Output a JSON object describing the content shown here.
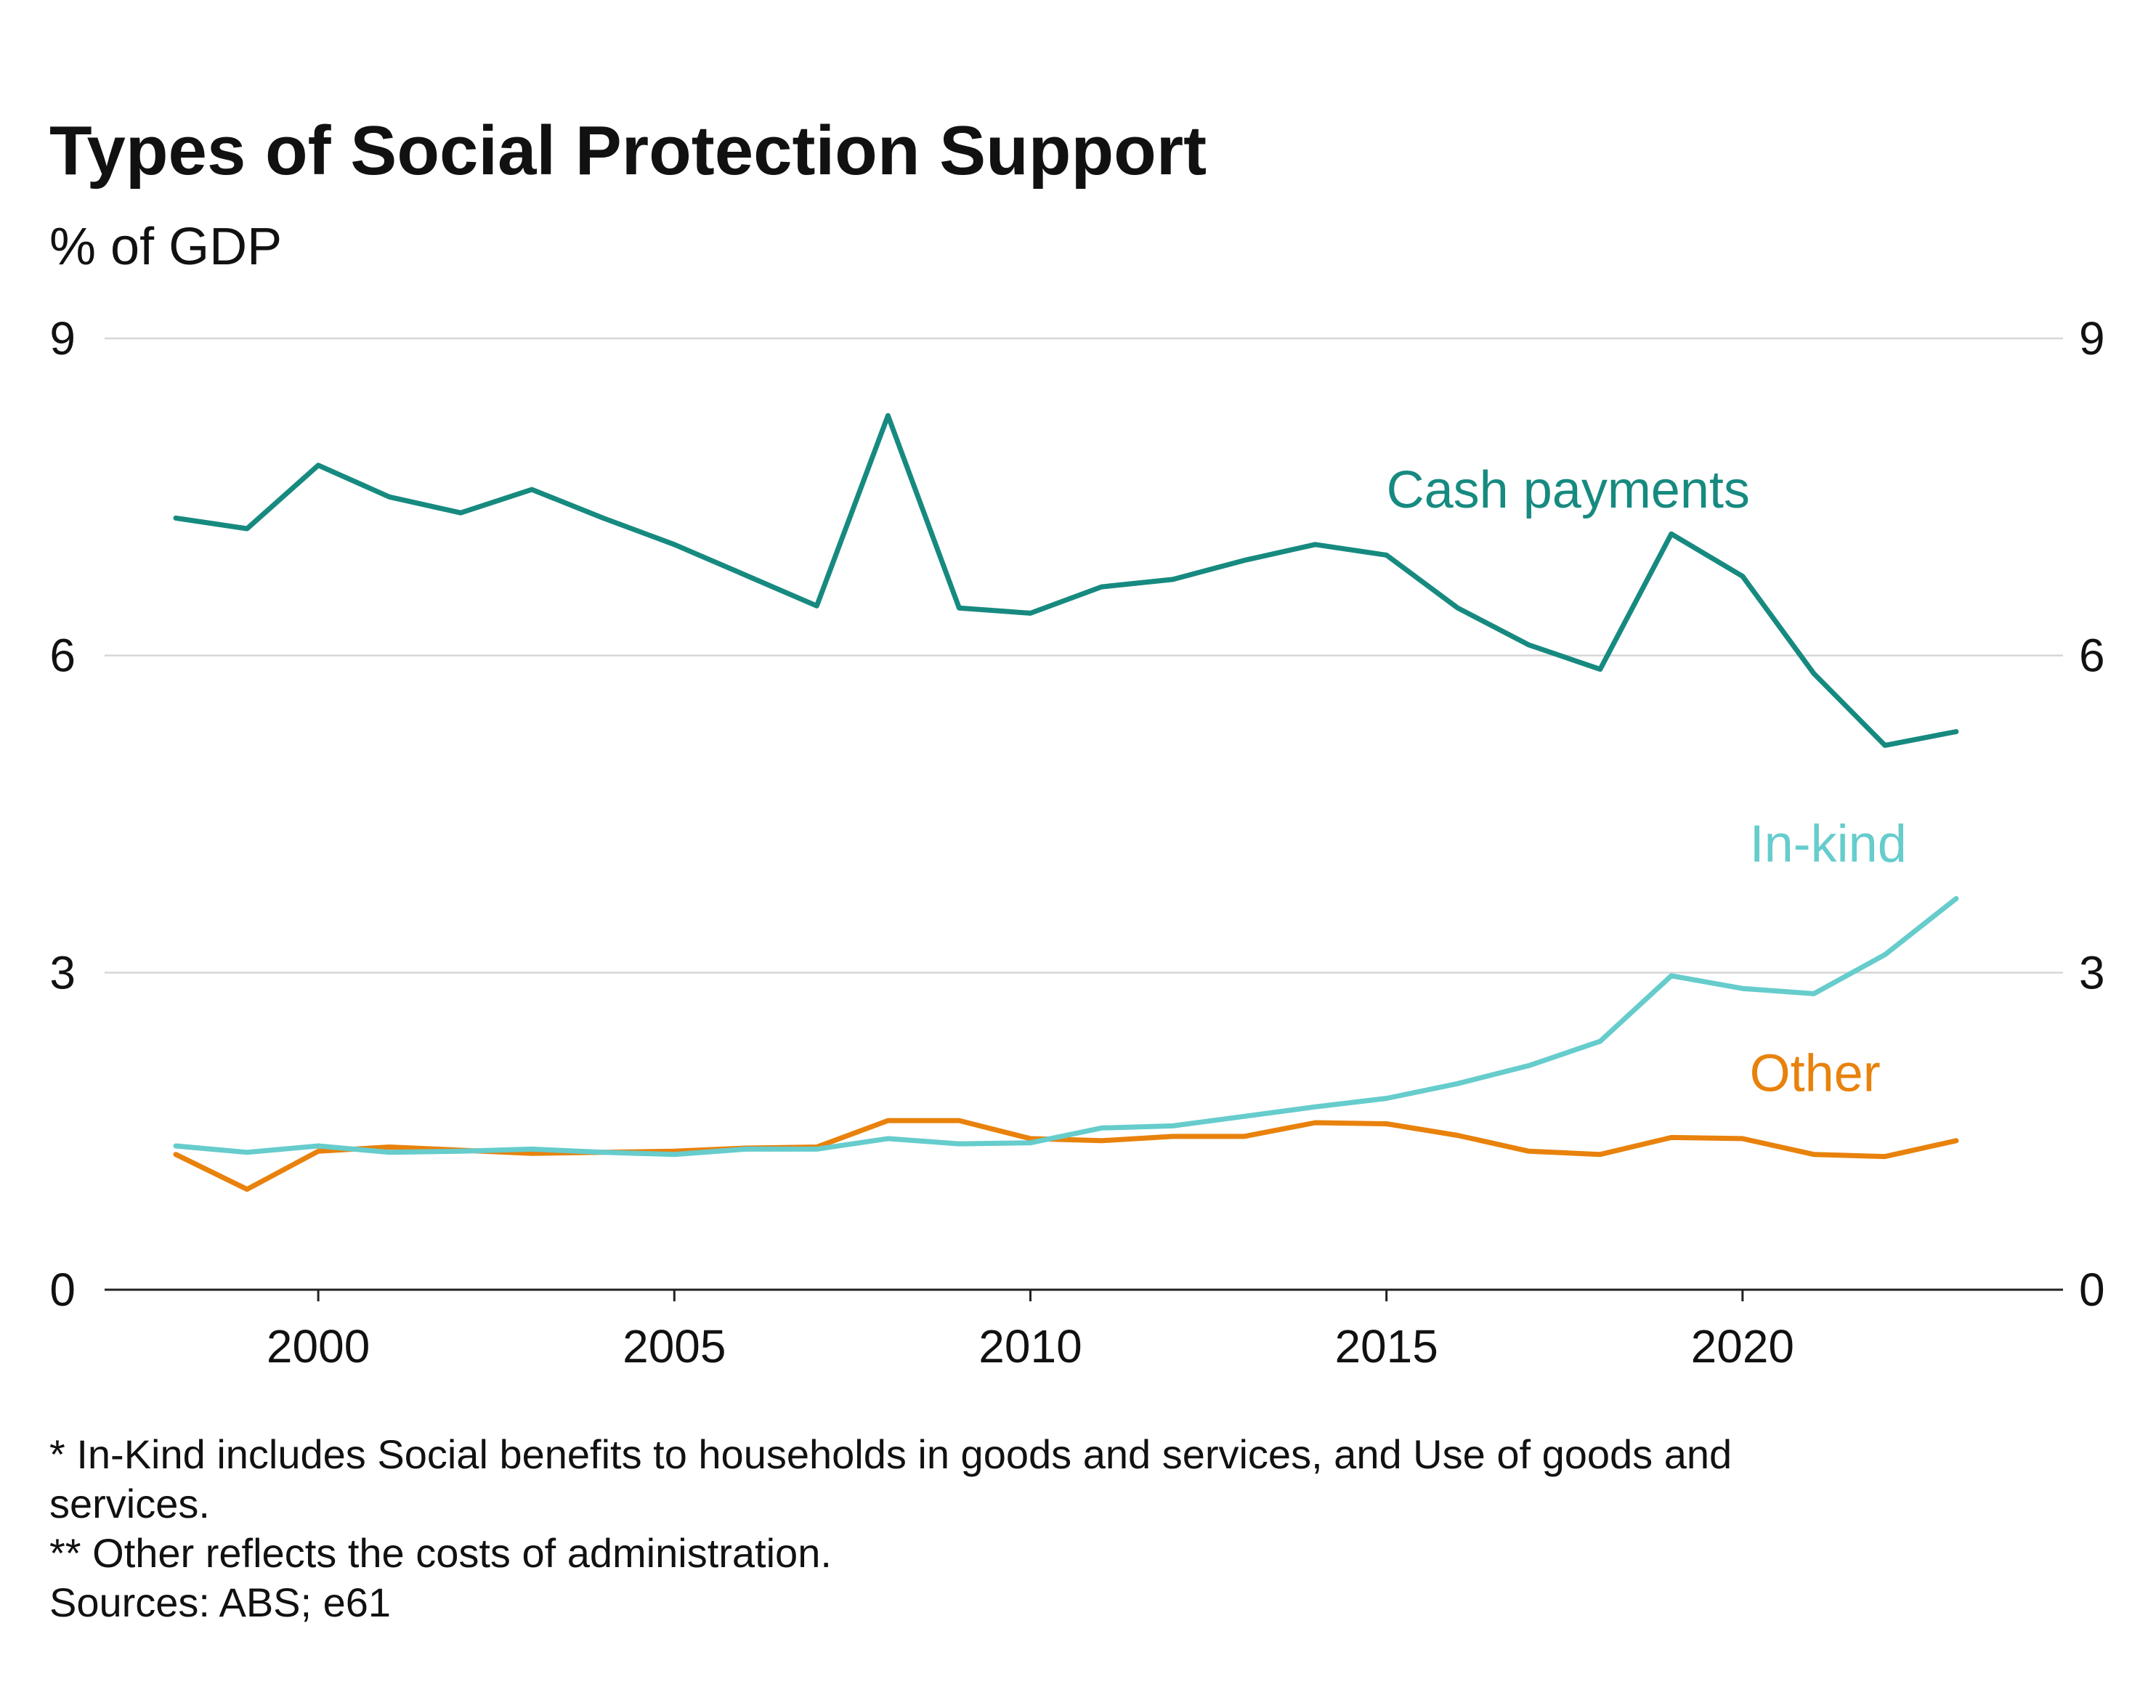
{
  "chart_data": {
    "type": "line",
    "title": "Types of Social Protection Support",
    "subtitle": "% of GDP",
    "xlabel": "",
    "ylabel": "",
    "xlim": [
      1997,
      2024.5
    ],
    "ylim": [
      0,
      9
    ],
    "y_ticks": [
      0,
      3,
      6,
      9
    ],
    "x_ticks": [
      2000,
      2005,
      2010,
      2015,
      2020
    ],
    "grid": true,
    "right_axis": true,
    "x": [
      1998,
      1999,
      2000,
      2001,
      2002,
      2003,
      2004,
      2005,
      2006,
      2007,
      2008,
      2009,
      2010,
      2011,
      2012,
      2013,
      2014,
      2015,
      2016,
      2017,
      2018,
      2019,
      2020,
      2021,
      2022,
      2023
    ],
    "series": [
      {
        "name": "Cash payments",
        "color": "#178a80",
        "values": [
          7.3,
          7.2,
          7.8,
          7.5,
          7.35,
          7.57,
          7.3,
          7.05,
          6.76,
          6.47,
          8.27,
          6.45,
          6.4,
          6.65,
          6.72,
          6.9,
          7.05,
          6.95,
          6.45,
          6.1,
          5.87,
          7.15,
          6.75,
          5.83,
          5.15,
          5.28
        ]
      },
      {
        "name": "In-kind",
        "color": "#66cccc",
        "values": [
          1.36,
          1.3,
          1.36,
          1.3,
          1.31,
          1.33,
          1.3,
          1.28,
          1.33,
          1.33,
          1.43,
          1.38,
          1.39,
          1.53,
          1.55,
          1.64,
          1.73,
          1.81,
          1.95,
          2.12,
          2.35,
          2.97,
          2.85,
          2.8,
          3.17,
          3.7
        ]
      },
      {
        "name": "Other",
        "color": "#e8820c",
        "values": [
          1.28,
          0.95,
          1.31,
          1.35,
          1.32,
          1.29,
          1.3,
          1.31,
          1.34,
          1.35,
          1.6,
          1.6,
          1.43,
          1.41,
          1.45,
          1.45,
          1.58,
          1.57,
          1.46,
          1.31,
          1.28,
          1.44,
          1.43,
          1.28,
          1.26,
          1.41
        ]
      }
    ],
    "notes": [
      "* In-Kind includes Social benefits to households in goods and services, and Use of goods and",
      "services.",
      "** Other reflects the costs of administration.",
      "Sources: ABS; e61"
    ]
  }
}
